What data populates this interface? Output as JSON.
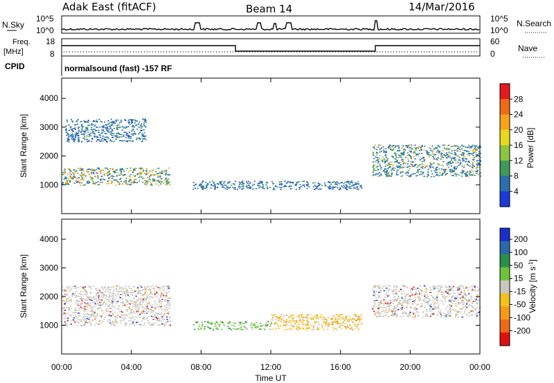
{
  "header": {
    "radar": "Adak East (fitACF)",
    "beam": "Beam 14",
    "date": "14/Mar/2016"
  },
  "top_panels": {
    "nsky_label": "N.Sky",
    "nsky_ticks": [
      "10^5",
      "10^0"
    ],
    "nsearch_label": "N.Search",
    "nsearch_ticks": [
      "10^5",
      "10^0"
    ],
    "freq_label_1": "Freq.",
    "freq_label_2": "[MHz]",
    "freq_ticks": [
      "18",
      "8"
    ],
    "nave_label": "Nave",
    "nave_ticks": [
      "60",
      "0"
    ],
    "cpid_label": "CPID",
    "cpid_text": "normalsound (fast) -157 RF"
  },
  "power_colorbar": {
    "label": "Power [dB]",
    "ticks": [
      "28",
      "24",
      "20",
      "16",
      "12",
      "8",
      "4"
    ],
    "colors": [
      "#e41a1c",
      "#f06a1a",
      "#f7a21b",
      "#e8d81c",
      "#8cc63f",
      "#3f9a5a",
      "#2b6fb0",
      "#1a3bd6"
    ]
  },
  "velocity_colorbar": {
    "label": "Velocity [m s",
    "label_sup": "-1",
    "label_end": "]",
    "ticks": [
      "200",
      "100",
      "50",
      "15",
      "-15",
      "-50",
      "-100",
      "-200"
    ],
    "colors": [
      "#1a2fc8",
      "#2b6aa8",
      "#2a8f4a",
      "#6cc43a",
      "#c8c8c0",
      "#f3c21b",
      "#f59b17",
      "#ee6a18",
      "#e01010"
    ]
  },
  "chart_data": [
    {
      "type": "heatmap",
      "title": "Power",
      "ylabel": "Slant Range [km]",
      "xlabel": "Time UT",
      "x_ticks": [
        "00:00",
        "04:00",
        "08:00",
        "12:00",
        "16:00",
        "20:00",
        "00:00"
      ],
      "y_ticks": [
        1000,
        2000,
        3000,
        4000
      ],
      "ylim": [
        0,
        4700
      ],
      "xlim_hours": [
        0,
        24
      ],
      "regions": [
        {
          "t0": 0.0,
          "t1": 6.2,
          "r0": 1000,
          "r1": 1600,
          "level": "high"
        },
        {
          "t0": 0.2,
          "t1": 4.8,
          "r0": 2500,
          "r1": 3300,
          "level": "low"
        },
        {
          "t0": 7.5,
          "t1": 17.2,
          "r0": 850,
          "r1": 1150,
          "level": "low"
        },
        {
          "t0": 17.8,
          "t1": 24.0,
          "r0": 1300,
          "r1": 2400,
          "level": "mid"
        }
      ]
    },
    {
      "type": "heatmap",
      "title": "Velocity",
      "ylabel": "Slant Range [km]",
      "xlabel": "Time UT",
      "x_ticks": [
        "00:00",
        "04:00",
        "08:00",
        "12:00",
        "16:00",
        "20:00",
        "00:00"
      ],
      "y_ticks": [
        1000,
        2000,
        3000,
        4000
      ],
      "ylim": [
        0,
        4700
      ],
      "xlim_hours": [
        0,
        24
      ],
      "regions": [
        {
          "t0": 0.0,
          "t1": 6.2,
          "r0": 1000,
          "r1": 2400,
          "level": "near-zero"
        },
        {
          "t0": 7.5,
          "t1": 12.0,
          "r0": 850,
          "r1": 1150,
          "level": "positive"
        },
        {
          "t0": 12.0,
          "t1": 17.2,
          "r0": 850,
          "r1": 1400,
          "level": "negative"
        },
        {
          "t0": 17.8,
          "t1": 24.0,
          "r0": 1300,
          "r1": 2400,
          "level": "near-zero"
        }
      ]
    }
  ],
  "x_axis_title": "Time UT"
}
